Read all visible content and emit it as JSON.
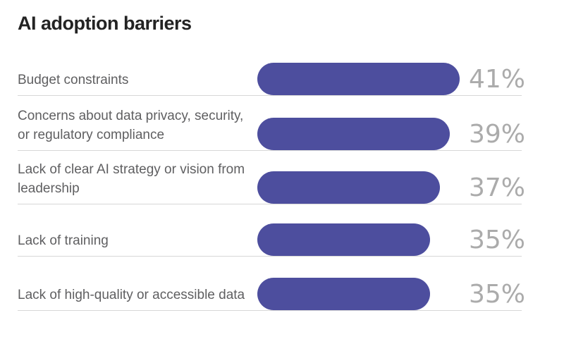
{
  "title": "AI adoption barriers",
  "colors": {
    "bar": "#4d4e9e",
    "pct_text": "#ababab",
    "label_text": "#5f5f61",
    "title_text": "#232323",
    "divider": "#d7d7d7",
    "background": "#ffffff"
  },
  "chart_data": {
    "type": "bar",
    "orientation": "horizontal",
    "title": "AI adoption barriers",
    "categories": [
      "Budget constraints",
      "Concerns about data privacy, security, or regulatory compliance",
      "Lack of clear AI strategy or vision from leadership",
      "Lack of training",
      "Lack of high-quality or accessible data"
    ],
    "values": [
      41,
      39,
      37,
      35,
      35
    ],
    "value_labels": [
      "41%",
      "39%",
      "37%",
      "35%",
      "35%"
    ],
    "unit": "%",
    "xlim": [
      0,
      43
    ],
    "grid": false,
    "legend": false,
    "bar_shape": "pill",
    "value_label_position": "right-of-bar-fixed-column"
  }
}
